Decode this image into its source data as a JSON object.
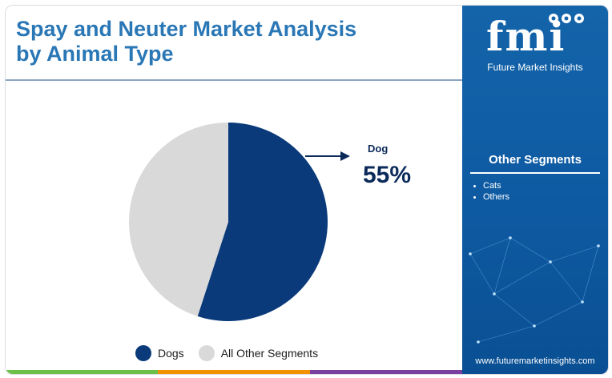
{
  "header": {
    "title_line1": "Spay and Neuter Market Analysis",
    "title_line2": "by Animal Type"
  },
  "callout": {
    "label": "Dog",
    "value": "55%"
  },
  "legend": [
    {
      "label": "Dogs",
      "color": "#0a3a7a"
    },
    {
      "label": "All Other Segments",
      "color": "#d9d9d9"
    }
  ],
  "sidebar": {
    "brand_text": "Future Market Insights",
    "segments_title": "Other Segments",
    "segments": [
      "Cats",
      "Others"
    ],
    "url": "www.futuremarketinsights.com",
    "panel_color": "#1464aa"
  },
  "chart_data": {
    "type": "pie",
    "slices": [
      {
        "label": "Dogs",
        "value": 55,
        "color": "#0a3a7a"
      },
      {
        "label": "All Other Segments",
        "value": 45,
        "color": "#d9d9d9"
      }
    ],
    "title": "Spay and Neuter Market Analysis by Animal Type",
    "legend_position": "bottom"
  },
  "bottom_bar_colors": [
    "#6cc04a",
    "#f39200",
    "#7b3fa0"
  ]
}
